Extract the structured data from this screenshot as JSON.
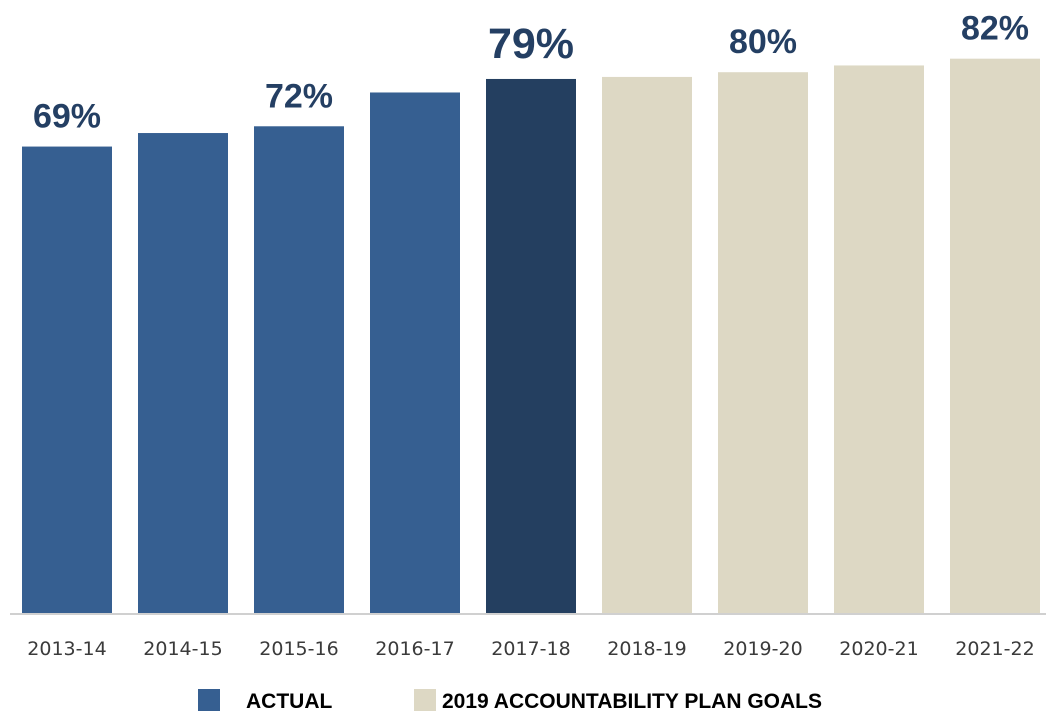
{
  "chart_data": {
    "type": "bar",
    "categories": [
      "2013-14",
      "2014-15",
      "2015-16",
      "2016-17",
      "2017-18",
      "2018-19",
      "2019-20",
      "2020-21",
      "2021-22"
    ],
    "values": [
      69,
      71,
      72,
      77,
      79,
      79.3,
      80,
      81,
      82
    ],
    "series_groups": [
      "actual",
      "actual",
      "actual",
      "actual",
      "actual",
      "goal",
      "goal",
      "goal",
      "goal"
    ],
    "data_labels": [
      "69%",
      "",
      "72%",
      "",
      "79%",
      "",
      "80%",
      "",
      "82%"
    ],
    "highlight_index": 4,
    "legend": {
      "position": "bottom",
      "items": [
        {
          "key": "actual",
          "label": "ACTUAL",
          "color": "#365f91"
        },
        {
          "key": "goal",
          "label": "2019 ACCOUNTABILITY PLAN GOALS",
          "color": "#ddd8c4"
        }
      ]
    },
    "colors": {
      "actual": "#365f91",
      "highlight": "#243f60",
      "goal": "#ddd8c4",
      "label": "#243f63",
      "axis": "#d0d0d0"
    },
    "ylim": [
      0,
      100
    ],
    "grid": false,
    "title": "",
    "xlabel": "",
    "ylabel": ""
  }
}
